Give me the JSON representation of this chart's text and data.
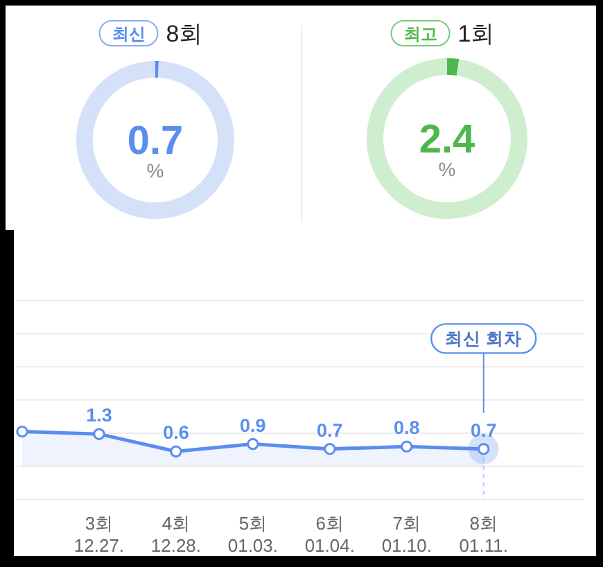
{
  "chart_data": [
    {
      "type": "donut",
      "title": "8회",
      "annotations": [
        "최신",
        "0.7",
        "%"
      ],
      "categories": [
        null,
        null
      ],
      "values": [
        0.7,
        99.3
      ],
      "colors": [
        "#5b8def",
        "#d4e1f8"
      ]
    },
    {
      "type": "donut",
      "title": "1회",
      "annotations": [
        "최고",
        "2.4",
        "%"
      ],
      "categories": [
        null,
        null
      ],
      "values": [
        2.4,
        97.6
      ],
      "colors": [
        "#4cb84c",
        "#cfeecf"
      ]
    },
    {
      "type": "area",
      "categories": [
        null,
        "3회\n12.27.",
        "4회\n12.28.",
        "5회\n01.03.",
        "6회\n01.04.",
        "7회\n01.10.",
        "8회\n01.11."
      ],
      "values": [
        1.4,
        1.3,
        0.6,
        0.9,
        0.7,
        0.8,
        0.7
      ],
      "color": "#5b8def",
      "value_labels": [
        null,
        "1.3",
        "0.6",
        "0.9",
        "0.7",
        "0.8",
        "0.7"
      ],
      "ylim": [
        -1.33,
        6.67
      ],
      "yticks": [
        {
          "value": -1.33,
          "label": null
        },
        {
          "value": 0,
          "label": null
        },
        {
          "value": 1.33,
          "label": null
        },
        {
          "value": 2.67,
          "label": null
        },
        {
          "value": 4,
          "label": null
        },
        {
          "value": 5.33,
          "label": null
        },
        {
          "value": 6.67,
          "label": null
        }
      ],
      "grid": "y",
      "marker": "circle",
      "tick_labels": "x",
      "annotations": [
        {
          "text": "최신 회차",
          "x": "8회\n01.11."
        }
      ]
    }
  ]
}
